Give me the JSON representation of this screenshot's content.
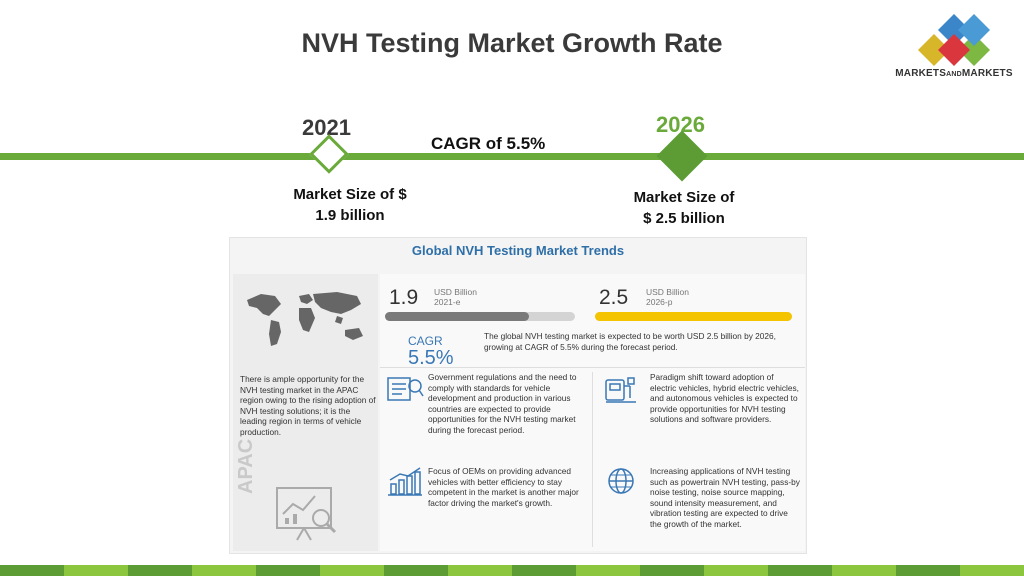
{
  "slide": {
    "title": "NVH Testing Market Growth Rate"
  },
  "logo": {
    "text_big_1": "MARKETS",
    "text_small": "AND",
    "text_big_2": "MARKETS"
  },
  "timeline": {
    "year_start": "2021",
    "year_end": "2026",
    "cagr": "CAGR of 5.5%",
    "size_start_line1": "Market Size of $",
    "size_start_line2": "1.9 billion",
    "size_end_line1": "Market Size of",
    "size_end_line2": "$ 2.5 billion",
    "accent_color": "#6aaa3a"
  },
  "infographic": {
    "title": "Global NVH Testing Market Trends",
    "apac_label": "APAC",
    "apac_text": "There is ample opportunity for the NVH testing market in the APAC region owing to the rising adoption of NVH testing solutions; it is the leading region in terms of vehicle production.",
    "stat_2021": {
      "value": "1.9",
      "unit_line1": "USD Billion",
      "unit_line2": "2021-e",
      "bar_fill": 0.76,
      "color": "#7a7a7a"
    },
    "stat_2026": {
      "value": "2.5",
      "unit_line1": "USD Billion",
      "unit_line2": "2026-p",
      "bar_fill": 1.0,
      "color": "#f5c400"
    },
    "cagr_label": "CAGR",
    "cagr_value": "5.5%",
    "cagr_text": "The global NVH testing market is expected to be worth USD 2.5 billion by 2026, growing at CAGR of 5.5% during the forecast period.",
    "point_1": "Government regulations and the need to comply with standards for vehicle development and production in various countries are expected to provide opportunities for the NVH testing market during the forecast period.",
    "point_2": "Paradigm shift toward adoption of electric vehicles, hybrid electric vehicles, and autonomous vehicles is expected to provide opportunities for NVH testing solutions and software providers.",
    "point_3": "Focus of OEMs on providing advanced vehicles with better efficiency to stay competent in the market is another major factor driving the market's growth.",
    "point_4": "Increasing applications of NVH testing such as powertrain NVH testing, pass-by noise testing, noise source mapping, sound intensity measurement, and vibration testing are expected to drive the growth of the market."
  },
  "footer": {
    "colors": [
      "#5d9c35",
      "#8cc63f"
    ]
  }
}
